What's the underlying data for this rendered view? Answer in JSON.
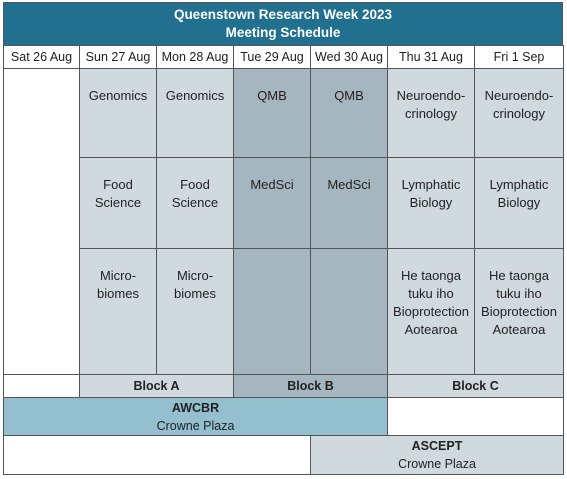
{
  "title": [
    "Queenstown Research Week 2023",
    "Meeting Schedule"
  ],
  "days": [
    "Sat 26 Aug",
    "Sun 27 Aug",
    "Mon 28 Aug",
    "Tue 29 Aug",
    "Wed 30 Aug",
    "Thu 31 Aug",
    "Fri 1 Sep"
  ],
  "sessions": [
    [
      [
        "Genomics"
      ],
      [
        "Genomics"
      ],
      [
        "QMB"
      ],
      [
        "QMB"
      ],
      [
        "Neuroendo-",
        "crinology"
      ],
      [
        "Neuroendo-",
        "crinology"
      ]
    ],
    [
      [
        "Food",
        "Science"
      ],
      [
        "Food",
        "Science"
      ],
      [
        "MedSci"
      ],
      [
        "MedSci"
      ],
      [
        "Lymphatic",
        "Biology"
      ],
      [
        "Lymphatic",
        "Biology"
      ]
    ],
    [
      [
        "Micro-",
        "biomes"
      ],
      [
        "Micro-",
        "biomes"
      ],
      [],
      [],
      [
        "He taonga",
        "tuku iho",
        "Bioprotection",
        "Aotearoa"
      ],
      [
        "He taonga",
        "tuku iho",
        "Bioprotection",
        "Aotearoa"
      ]
    ]
  ],
  "blocks": [
    "Block A",
    "Block B",
    "Block C"
  ],
  "meetings": [
    {
      "name": "AWCBR",
      "venue": "Crowne Plaza"
    },
    {
      "name": "ASCEPT",
      "venue": "Crowne Plaza"
    }
  ]
}
